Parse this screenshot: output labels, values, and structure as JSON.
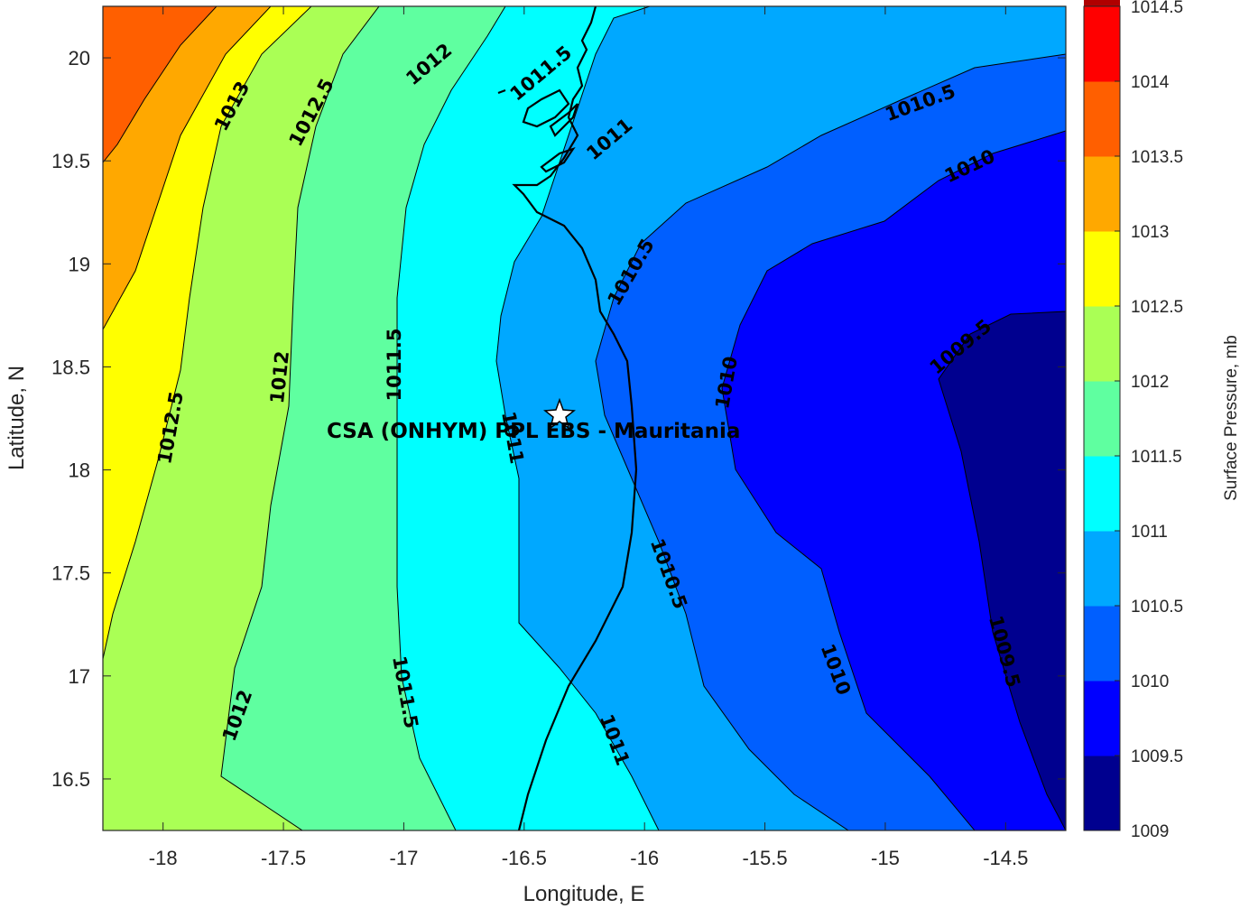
{
  "chart_data": {
    "type": "contour",
    "xlabel": "Longitude, E",
    "ylabel": "Latitude, N",
    "xlim": [
      -18.25,
      -14.25
    ],
    "ylim": [
      16.25,
      20.25
    ],
    "x_ticks": [
      "-18",
      "-17.5",
      "-17",
      "-16.5",
      "-16",
      "-15.5",
      "-15",
      "-14.5"
    ],
    "y_ticks": [
      "16.5",
      "17",
      "17.5",
      "18",
      "18.5",
      "19",
      "19.5",
      "20"
    ],
    "colorbar": {
      "label": "Surface Pressure, mb",
      "ticks": [
        "1009",
        "1009.5",
        "1010",
        "1010.5",
        "1011",
        "1011.5",
        "1012",
        "1012.5",
        "1013",
        "1013.5",
        "1014",
        "1014.5"
      ],
      "colors": [
        "#00008f",
        "#0000ff",
        "#005fff",
        "#00a8ff",
        "#00ffff",
        "#5fffa0",
        "#aaff55",
        "#ffff00",
        "#ffa800",
        "#ff5f00",
        "#ff0000",
        "#af0000"
      ]
    },
    "contour_labels": [
      "1013",
      "1012.5",
      "1012.5",
      "1012",
      "1012",
      "1012",
      "1011.5",
      "1011.5",
      "1011.5",
      "1011",
      "1011",
      "1011",
      "1010.5",
      "1010.5",
      "1010.5",
      "1010",
      "1010",
      "1010",
      "1009.5",
      "1009.5"
    ],
    "site": {
      "label": "CSA (ONHYM) PPL EBS  - Mauritania",
      "lon": -16.33,
      "lat": 18.27,
      "marker": "star"
    },
    "grid": false
  }
}
